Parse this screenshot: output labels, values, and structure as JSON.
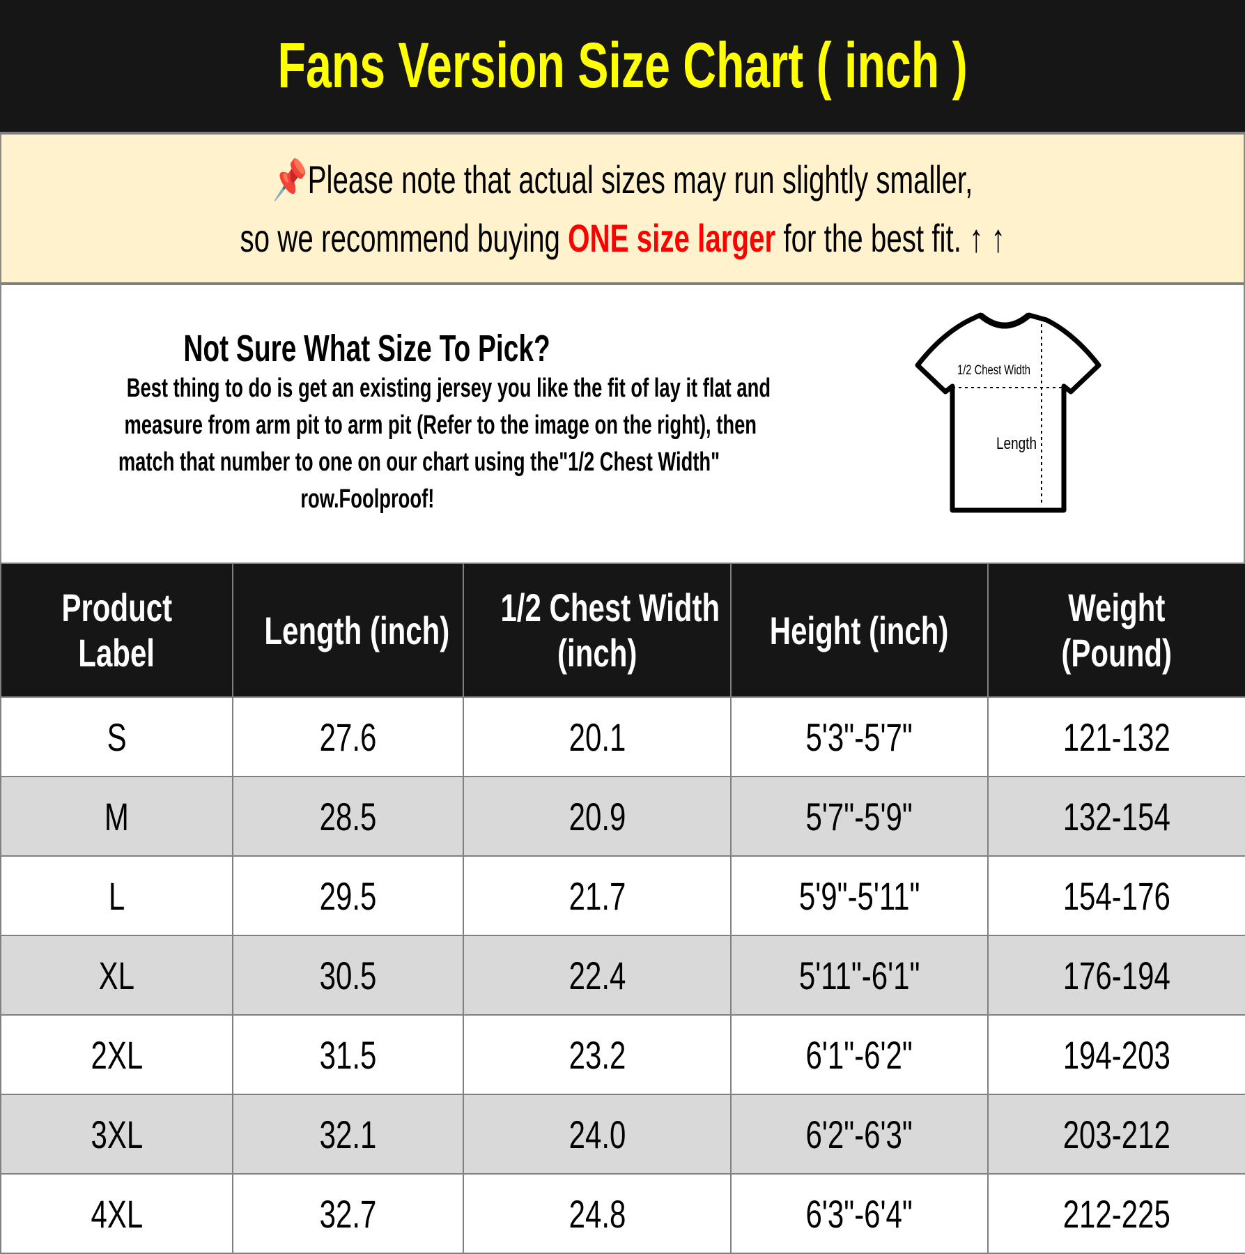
{
  "title": "Fans Version Size Chart ( inch )",
  "note": {
    "pin_icon": "pushpin-icon",
    "line1": "Please note that actual sizes may run slightly smaller,",
    "line2_pre": "so we recommend buying ",
    "line2_highlight": "ONE size larger",
    "line2_post": " for the best fit. ",
    "arrows": "↑ ↑",
    "highlight_color": "#ff0000"
  },
  "info": {
    "title": "Not Sure What Size To Pick?",
    "lines": [
      "Best thing to do is get an existing jersey you like the fit of lay it flat and",
      "measure from arm pit to arm pit (Refer to the image on the right), then",
      "match that number to one on our chart using the\"1/2 Chest Width\"",
      "row.Foolproof!"
    ],
    "diagram_chest": "1/2 Chest Width",
    "diagram_length": "Length"
  },
  "table": {
    "headers": [
      [
        "Product",
        "Label"
      ],
      [
        "Length (inch)"
      ],
      [
        "1/2 Chest Width",
        "(inch)"
      ],
      [
        "Height (inch)"
      ],
      [
        "Weight",
        "(Pound)"
      ]
    ],
    "rows": [
      [
        "S",
        "27.6",
        "20.1",
        "5'3\"-5'7\"",
        "121-132"
      ],
      [
        "M",
        "28.5",
        "20.9",
        "5'7\"-5'9\"",
        "132-154"
      ],
      [
        "L",
        "29.5",
        "21.7",
        "5'9\"-5'11\"",
        "154-176"
      ],
      [
        "XL",
        "30.5",
        "22.4",
        "5'11\"-6'1\"",
        "176-194"
      ],
      [
        "2XL",
        "31.5",
        "23.2",
        "6'1\"-6'2\"",
        "194-203"
      ],
      [
        "3XL",
        "32.1",
        "24.0",
        "6'2\"-6'3\"",
        "203-212"
      ],
      [
        "4XL",
        "32.7",
        "24.8",
        "6'3\"-6'4\"",
        "212-225"
      ]
    ]
  }
}
